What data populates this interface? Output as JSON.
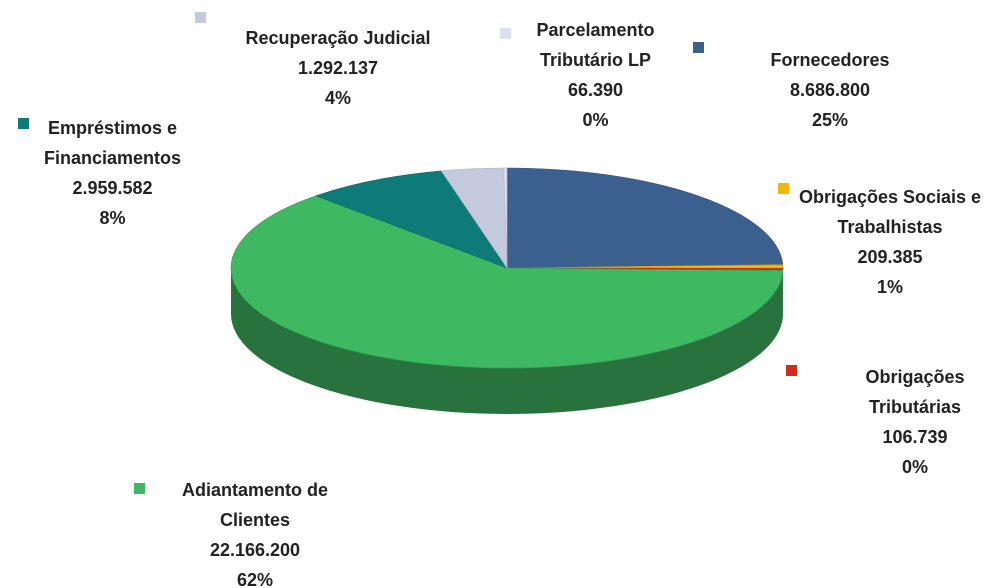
{
  "chart_data": {
    "type": "pie",
    "categories": [
      "Fornecedores",
      "Obrigações Sociais e Trabalhistas",
      "Obrigações Tributárias",
      "Adiantamento de Clientes",
      "Empréstimos e Financiamentos",
      "Recuperação Judicial",
      "Parcelamento Tributário LP"
    ],
    "values": [
      8686800,
      209385,
      106739,
      22166200,
      2959582,
      1292137,
      66390
    ],
    "value_labels": [
      "8.686.800",
      "209.385",
      "106.739",
      "22.166.200",
      "2.959.582",
      "1.292.137",
      "66.390"
    ],
    "percent_labels": [
      "25%",
      "1%",
      "0%",
      "62%",
      "8%",
      "4%",
      "0%"
    ],
    "colors": [
      "#3b5f8e",
      "#f2b705",
      "#d42a1e",
      "#3fb862",
      "#0f7b79",
      "#c3cade",
      "#dde1ee"
    ]
  }
}
